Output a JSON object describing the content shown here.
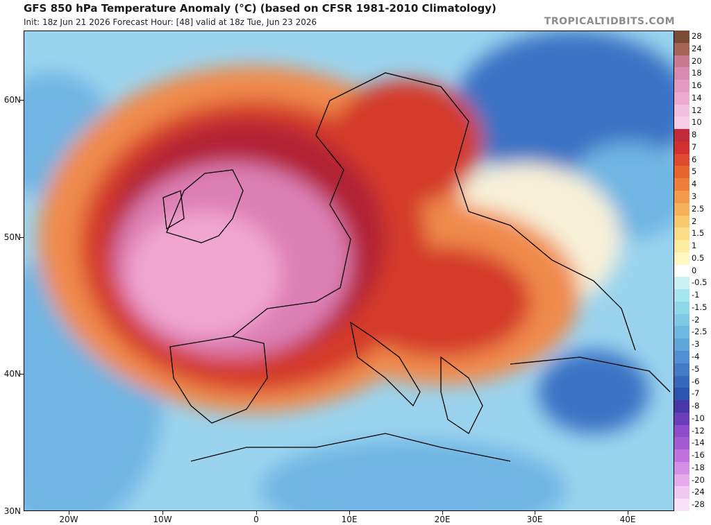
{
  "header": {
    "title": "GFS 850 hPa Temperature Anomaly (°C) (based on CFSR 1981-2010 Climatology)",
    "subtitle": "Init: 18z Jun 21 2026   Forecast Hour: [48]   valid at 18z Tue, Jun 23 2026",
    "brand": "TROPICALTIDBITS.COM"
  },
  "map": {
    "lat_labels": [
      "60N",
      "50N",
      "40N",
      "30N"
    ],
    "lon_labels": [
      "20W",
      "10W",
      "0",
      "10E",
      "20E",
      "30E",
      "40E"
    ],
    "colors": {
      "sea_cold": "#6fb5e3",
      "sea_cool": "#9ad3ee",
      "warm_orange": "#f08a4b",
      "hot_red": "#d43a2b",
      "hot_deep": "#b22234",
      "extreme_pink": "#dd7fb6",
      "extreme_light_pink": "#f1a6d2",
      "cold_blue": "#3b72c4",
      "neutral": "#f7f0d8",
      "borders": "#000000"
    }
  },
  "legend": {
    "labels": [
      "28",
      "24",
      "20",
      "18",
      "16",
      "14",
      "12",
      "10",
      "8",
      "7",
      "6",
      "5",
      "4",
      "3",
      "2.5",
      "2",
      "1.5",
      "1",
      "0.5",
      "0",
      "-0.5",
      "-1",
      "-1.5",
      "-2",
      "-2.5",
      "-3",
      "-4",
      "-5",
      "-6",
      "-7",
      "-8",
      "-10",
      "-12",
      "-14",
      "-16",
      "-18",
      "-20",
      "-24",
      "-28"
    ],
    "colors": [
      "#7b4b3a",
      "#a56455",
      "#c77a92",
      "#d98ab0",
      "#e29ac3",
      "#eaaad2",
      "#f3bfe0",
      "#f6cde6",
      "#c12a3a",
      "#d0302f",
      "#de4a2f",
      "#e8642f",
      "#ee7d3c",
      "#f29a4a",
      "#f5b259",
      "#f8c86d",
      "#fbdc86",
      "#fdeca0",
      "#fef7c4",
      "#ffffff",
      "#c9f1f4",
      "#a6e6ee",
      "#8fd8ea",
      "#7dc9e6",
      "#6db8e0",
      "#5fa6db",
      "#4f8fd2",
      "#437bc7",
      "#3567bb",
      "#2b53ad",
      "#4937a8",
      "#6a3dba",
      "#8d4cc9",
      "#a55bd3",
      "#bf72de",
      "#d58ee6",
      "#e5abec",
      "#f0c8f1",
      "#f8e1f7"
    ]
  }
}
